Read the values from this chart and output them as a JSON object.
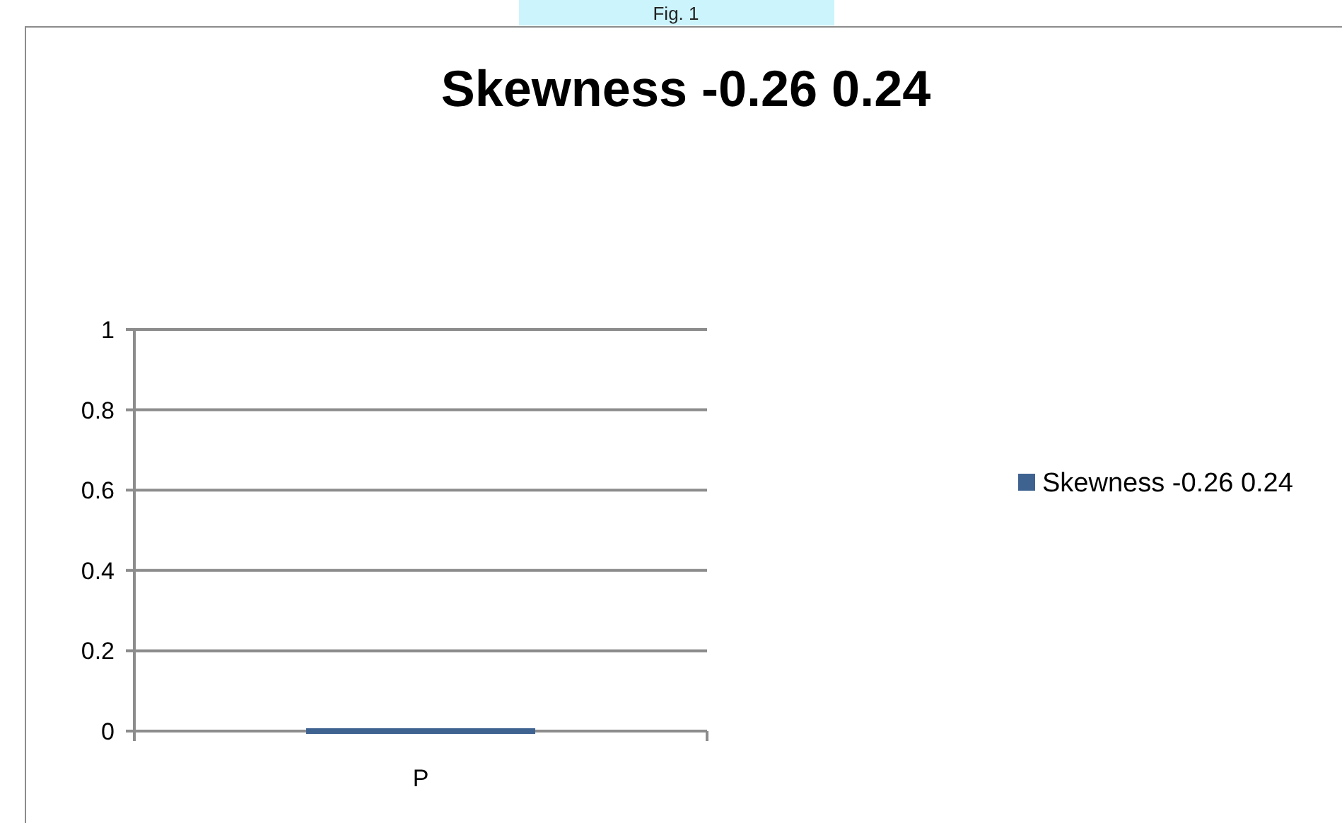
{
  "chart_data": {
    "type": "bar",
    "title": "Skewness -0.26 0.24",
    "categories": [
      "P"
    ],
    "series": [
      {
        "name": "Skewness -0.26 0.24",
        "color": "#3f6391",
        "values": [
          0
        ]
      }
    ],
    "ylim": [
      0,
      1
    ],
    "yticks": [
      0,
      0.2,
      0.4,
      0.6,
      0.8,
      1
    ],
    "grid": "y",
    "legend": "right",
    "annotations": [
      "Fig. 1"
    ]
  }
}
